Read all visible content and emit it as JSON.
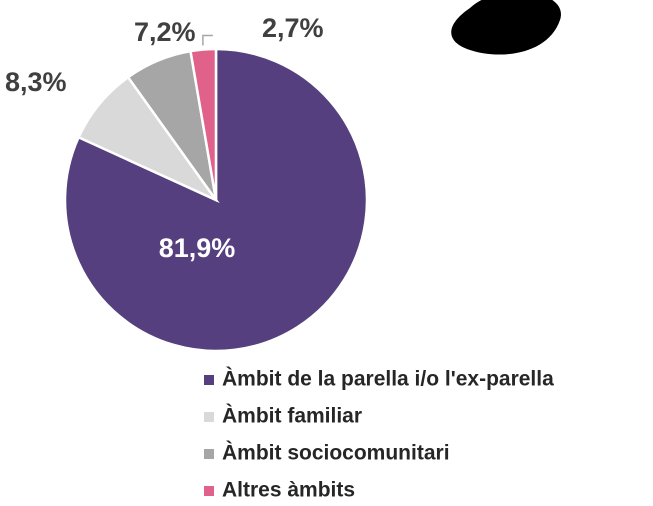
{
  "chart_data": {
    "type": "pie",
    "categories": [
      "Àmbit de la parella i/o l'ex-parella",
      "Àmbit familiar",
      "Àmbit sociocomunitari",
      "Altres àmbits"
    ],
    "values": [
      81.9,
      8.3,
      7.2,
      2.7
    ],
    "value_labels": [
      "81,9%",
      "8,3%",
      "7,2%",
      "2,7%"
    ],
    "colors": [
      "#553f7e",
      "#d9d9d9",
      "#a6a6a6",
      "#e0628a"
    ],
    "legend": "bottom"
  }
}
